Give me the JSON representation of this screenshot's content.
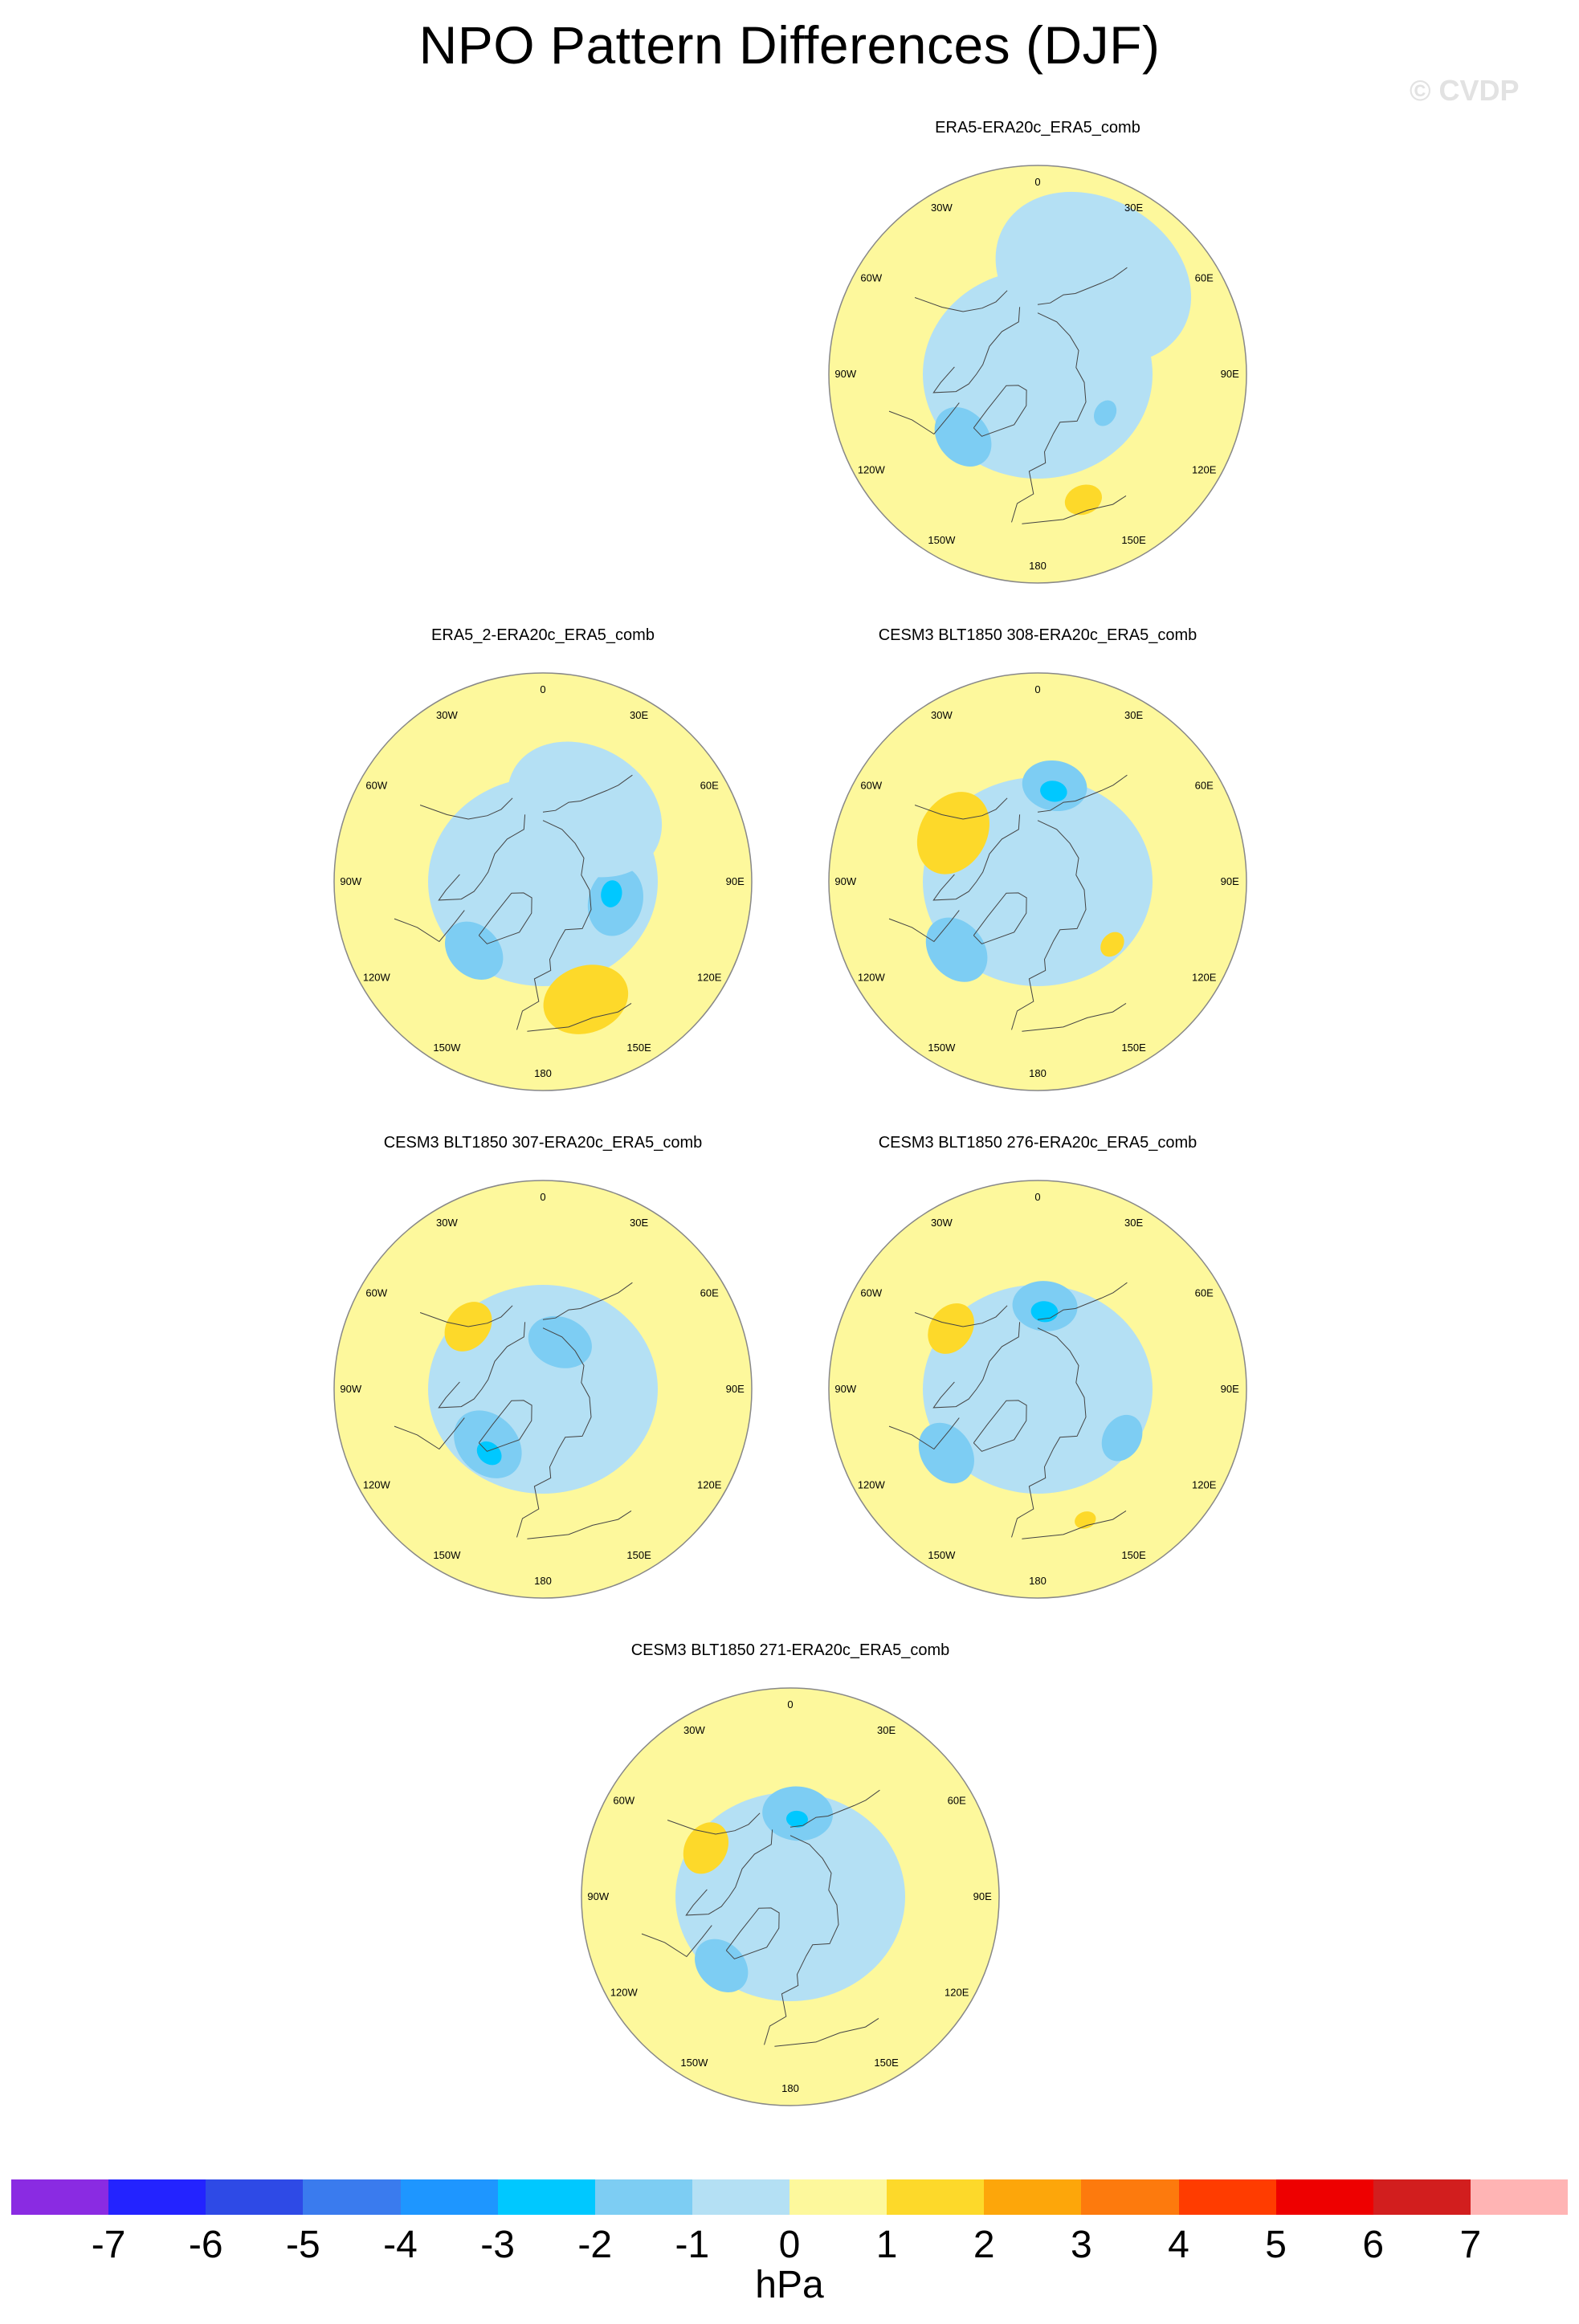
{
  "title": "NPO Pattern Differences (DJF)",
  "watermark": "© CVDP",
  "lon_labels": [
    "180",
    "150E",
    "120E",
    "90E",
    "60E",
    "30E",
    "0",
    "30W",
    "60W",
    "90W",
    "120W",
    "150W"
  ],
  "panels": [
    {
      "label": "ERA5-ERA20c_ERA5_comb",
      "features": [
        {
          "lon": -50,
          "lat": 55,
          "r": 0.12,
          "val": -2
        },
        {
          "lon": 20,
          "lat": 42,
          "r": 0.07,
          "val": 2
        },
        {
          "lon": 60,
          "lat": 62,
          "r": 0.05,
          "val": -2
        },
        {
          "lon": 150,
          "lat": 50,
          "r": 0.38,
          "val": -1
        }
      ]
    },
    {
      "label": "ERA5_2-ERA20c_ERA5_comb",
      "features": [
        {
          "lon": -45,
          "lat": 55,
          "r": 0.12,
          "val": -2
        },
        {
          "lon": 20,
          "lat": 45,
          "r": 0.16,
          "val": 2
        },
        {
          "lon": 75,
          "lat": 63,
          "r": 0.13,
          "val": -2
        },
        {
          "lon": 80,
          "lat": 65,
          "r": 0.05,
          "val": -3
        },
        {
          "lon": 150,
          "lat": 60,
          "r": 0.3,
          "val": -1
        }
      ]
    },
    {
      "label": "CESM3 BLT1850 308-ERA20c_ERA5_comb",
      "features": [
        {
          "lon": -120,
          "lat": 55,
          "r": 0.16,
          "val": 2
        },
        {
          "lon": -50,
          "lat": 52,
          "r": 0.13,
          "val": -2
        },
        {
          "lon": 170,
          "lat": 55,
          "r": 0.12,
          "val": -2
        },
        {
          "lon": 170,
          "lat": 57,
          "r": 0.05,
          "val": -3
        },
        {
          "lon": 50,
          "lat": 55,
          "r": 0.05,
          "val": 2
        }
      ]
    },
    {
      "label": "CESM3 BLT1850 307-ERA20c_ERA5_comb",
      "features": [
        {
          "lon": -45,
          "lat": 62,
          "r": 0.14,
          "val": -2
        },
        {
          "lon": -40,
          "lat": 60,
          "r": 0.05,
          "val": -3
        },
        {
          "lon": -130,
          "lat": 55,
          "r": 0.1,
          "val": 2
        },
        {
          "lon": 160,
          "lat": 72,
          "r": 0.12,
          "val": -2
        }
      ]
    },
    {
      "label": "CESM3 BLT1850 276-ERA20c_ERA5_comb",
      "features": [
        {
          "lon": -55,
          "lat": 50,
          "r": 0.12,
          "val": -2
        },
        {
          "lon": -125,
          "lat": 52,
          "r": 0.1,
          "val": 2
        },
        {
          "lon": 175,
          "lat": 60,
          "r": 0.12,
          "val": -2
        },
        {
          "lon": 175,
          "lat": 62,
          "r": 0.05,
          "val": -3
        },
        {
          "lon": 60,
          "lat": 55,
          "r": 0.09,
          "val": -2
        },
        {
          "lon": 20,
          "lat": 40,
          "r": 0.04,
          "val": 2
        }
      ]
    },
    {
      "label": "CESM3 BLT1850 271-ERA20c_ERA5_comb",
      "features": [
        {
          "lon": -45,
          "lat": 55,
          "r": 0.11,
          "val": -2
        },
        {
          "lon": -120,
          "lat": 55,
          "r": 0.1,
          "val": 2
        },
        {
          "lon": 175,
          "lat": 60,
          "r": 0.13,
          "val": -2
        },
        {
          "lon": 175,
          "lat": 62,
          "r": 0.04,
          "val": -3
        }
      ]
    }
  ],
  "colorbar": {
    "colors": [
      "#8a2be2",
      "#2323ff",
      "#2e4ae6",
      "#3a7bee",
      "#1e96ff",
      "#00c8ff",
      "#7dcdf3",
      "#b4e0f4",
      "#fdf89c",
      "#fdd92a",
      "#fda60a",
      "#fd7a0d",
      "#ff3c00",
      "#ee0000",
      "#d21e1e",
      "#ffb4b4"
    ],
    "ticks": [
      "-7",
      "-6",
      "-5",
      "-4",
      "-3",
      "-2",
      "-1",
      "0",
      "1",
      "2",
      "3",
      "4",
      "5",
      "6",
      "7"
    ],
    "units": "hPa"
  },
  "palette": {
    "-3": "#00c8ff",
    "-2": "#7dcdf3",
    "-1": "#b4e0f4",
    "0": "#fdf89c",
    "2": "#fdd92a"
  }
}
